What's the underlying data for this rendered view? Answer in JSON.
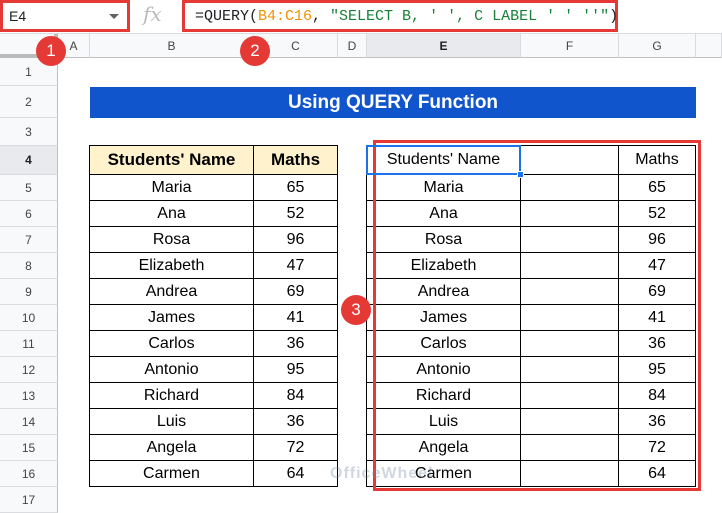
{
  "name_box": "E4",
  "formula": {
    "prefix": "=QUERY(",
    "range": "B4:C16",
    "sep": ", ",
    "query": "\"SELECT B, ' ', C LABEL ' ' ''\"",
    "suffix": ")"
  },
  "columns": [
    "A",
    "B",
    "C",
    "D",
    "E",
    "F",
    "G"
  ],
  "rows": [
    "1",
    "2",
    "3",
    "4",
    "5",
    "6",
    "7",
    "8",
    "9",
    "10",
    "11",
    "12",
    "13",
    "14",
    "15",
    "16",
    "17"
  ],
  "title": "Using QUERY Function",
  "source_table": {
    "headers": [
      "Students' Name",
      "Maths"
    ],
    "rows": [
      [
        "Maria",
        "65"
      ],
      [
        "Ana",
        "52"
      ],
      [
        "Rosa",
        "96"
      ],
      [
        "Elizabeth",
        "47"
      ],
      [
        "Andrea",
        "69"
      ],
      [
        "James",
        "41"
      ],
      [
        "Carlos",
        "36"
      ],
      [
        "Antonio",
        "95"
      ],
      [
        "Richard",
        "84"
      ],
      [
        "Luis",
        "36"
      ],
      [
        "Angela",
        "72"
      ],
      [
        "Carmen",
        "64"
      ]
    ]
  },
  "result_table": {
    "headers": [
      "Students' Name",
      "",
      "Maths"
    ]
  },
  "badges": [
    "1",
    "2",
    "3"
  ],
  "watermark": "OfficeWheel",
  "colors": {
    "title_bg": "#1155cc",
    "header_bg": "#fff2cc",
    "highlight": "#e53935",
    "selection": "#1a73e8"
  }
}
